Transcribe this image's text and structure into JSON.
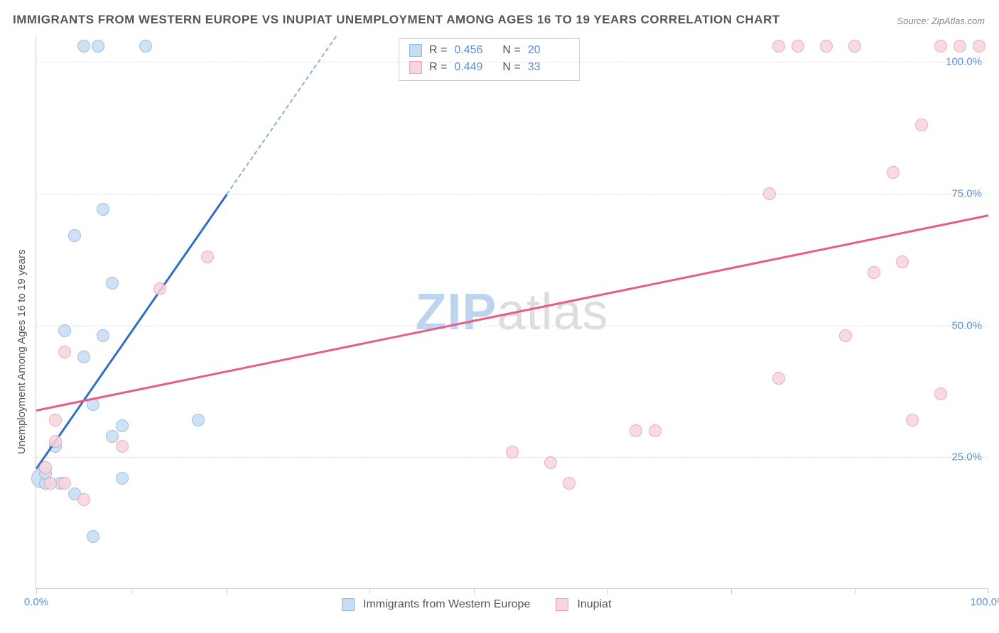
{
  "title": "IMMIGRANTS FROM WESTERN EUROPE VS INUPIAT UNEMPLOYMENT AMONG AGES 16 TO 19 YEARS CORRELATION CHART",
  "source": "Source: ZipAtlas.com",
  "y_axis_label": "Unemployment Among Ages 16 to 19 years",
  "watermark": {
    "bold": "ZIP",
    "light": "atlas"
  },
  "chart": {
    "type": "scatter",
    "background_color": "#ffffff",
    "grid_color": "#dddddd",
    "axis_color": "#cccccc",
    "tick_label_color": "#5b8fd6",
    "xlim": [
      0,
      100
    ],
    "ylim": [
      0,
      105
    ],
    "y_ticks": [
      25,
      50,
      75,
      100
    ],
    "y_tick_labels": [
      "25.0%",
      "50.0%",
      "75.0%",
      "100.0%"
    ],
    "x_ticks": [
      0,
      10,
      20,
      35,
      46,
      60,
      73,
      86,
      100
    ],
    "x_tick_labels": {
      "0": "0.0%",
      "100": "100.0%"
    },
    "series": [
      {
        "name": "Immigrants from Western Europe",
        "color_fill": "#c7ddf3",
        "color_stroke": "#8bb6e4",
        "trend_color": "#2f6fc7",
        "marker_radius": 9,
        "r": "0.456",
        "n": "20",
        "trend": {
          "x1": 0,
          "y1": 23,
          "x2": 20,
          "y2": 75
        },
        "trend_dash": {
          "x1": 20,
          "y1": 75,
          "x2": 31.5,
          "y2": 105
        },
        "points": [
          {
            "x": 0.5,
            "y": 21,
            "r": 14
          },
          {
            "x": 1,
            "y": 20
          },
          {
            "x": 1,
            "y": 22
          },
          {
            "x": 2,
            "y": 27
          },
          {
            "x": 2.5,
            "y": 20
          },
          {
            "x": 5,
            "y": 44
          },
          {
            "x": 4,
            "y": 67
          },
          {
            "x": 3,
            "y": 49
          },
          {
            "x": 7,
            "y": 48
          },
          {
            "x": 7,
            "y": 72
          },
          {
            "x": 6,
            "y": 35
          },
          {
            "x": 4,
            "y": 18
          },
          {
            "x": 6,
            "y": 10
          },
          {
            "x": 8,
            "y": 29
          },
          {
            "x": 9,
            "y": 31
          },
          {
            "x": 9,
            "y": 21
          },
          {
            "x": 8,
            "y": 58
          },
          {
            "x": 5,
            "y": 103
          },
          {
            "x": 6.5,
            "y": 103
          },
          {
            "x": 11.5,
            "y": 103
          },
          {
            "x": 17,
            "y": 32
          }
        ]
      },
      {
        "name": "Inupiat",
        "color_fill": "#f7d5dd",
        "color_stroke": "#eb9eb3",
        "trend_color": "#e85d87",
        "marker_radius": 9,
        "r": "0.449",
        "n": "33",
        "trend": {
          "x1": 0,
          "y1": 34,
          "x2": 100,
          "y2": 71
        },
        "points": [
          {
            "x": 1,
            "y": 23
          },
          {
            "x": 2,
            "y": 32
          },
          {
            "x": 3,
            "y": 20
          },
          {
            "x": 2,
            "y": 28
          },
          {
            "x": 1.5,
            "y": 20
          },
          {
            "x": 3,
            "y": 45
          },
          {
            "x": 5,
            "y": 17
          },
          {
            "x": 9,
            "y": 27
          },
          {
            "x": 13,
            "y": 57
          },
          {
            "x": 18,
            "y": 63
          },
          {
            "x": 50,
            "y": 26
          },
          {
            "x": 54,
            "y": 24
          },
          {
            "x": 56,
            "y": 20
          },
          {
            "x": 63,
            "y": 30
          },
          {
            "x": 65,
            "y": 30
          },
          {
            "x": 78,
            "y": 40
          },
          {
            "x": 77,
            "y": 75
          },
          {
            "x": 85,
            "y": 48
          },
          {
            "x": 88,
            "y": 60
          },
          {
            "x": 91,
            "y": 62
          },
          {
            "x": 90,
            "y": 79
          },
          {
            "x": 92,
            "y": 32
          },
          {
            "x": 95,
            "y": 37
          },
          {
            "x": 93,
            "y": 88
          },
          {
            "x": 78,
            "y": 103
          },
          {
            "x": 80,
            "y": 103
          },
          {
            "x": 83,
            "y": 103
          },
          {
            "x": 86,
            "y": 103
          },
          {
            "x": 95,
            "y": 103
          },
          {
            "x": 97,
            "y": 103
          },
          {
            "x": 99,
            "y": 103
          }
        ]
      }
    ],
    "legend_bottom": [
      {
        "label": "Immigrants from Western Europe",
        "fill": "#c7ddf3",
        "stroke": "#8bb6e4"
      },
      {
        "label": "Inupiat",
        "fill": "#f7d5dd",
        "stroke": "#eb9eb3"
      }
    ]
  }
}
